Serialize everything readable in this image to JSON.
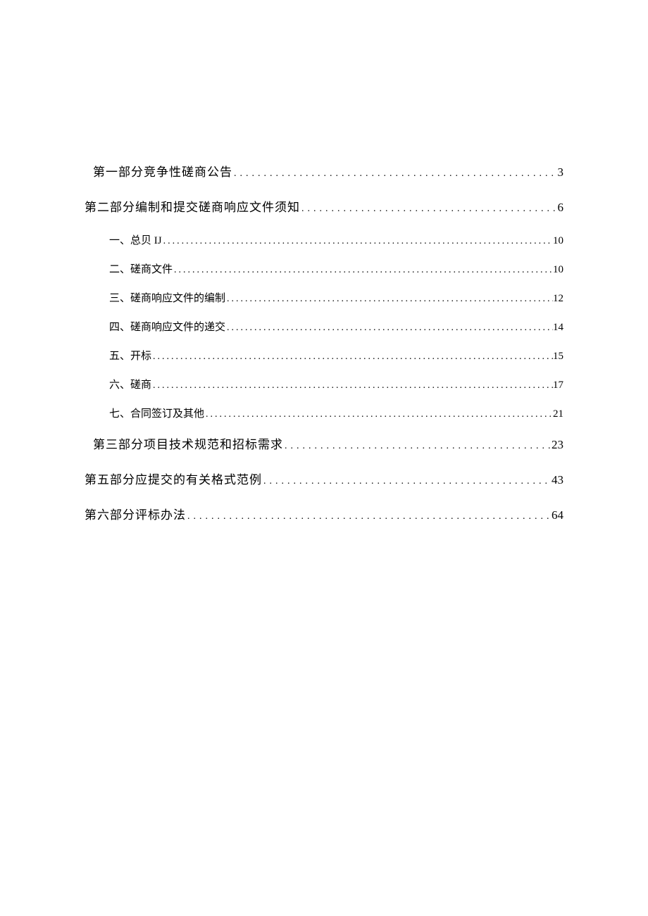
{
  "toc": {
    "background_color": "#ffffff",
    "text_color": "#000000",
    "level1_fontsize": 17,
    "level2_fontsize": 15,
    "entries": [
      {
        "level": 1,
        "label": "第一部分竞争性磋商公告",
        "page": "3",
        "indent": true
      },
      {
        "level": 1,
        "label": "第二部分编制和提交磋商响应文件须知",
        "page": "6",
        "indent": false
      },
      {
        "level": 2,
        "label": "一、总贝 IJ",
        "page": "10"
      },
      {
        "level": 2,
        "label": "二、磋商文件",
        "page": "10"
      },
      {
        "level": 2,
        "label": "三、磋商响应文件的编制",
        "page": "12"
      },
      {
        "level": 2,
        "label": "四、磋商响应文件的递交",
        "page": "14"
      },
      {
        "level": 2,
        "label": "五、开标",
        "page": "15"
      },
      {
        "level": 2,
        "label": "六、磋商",
        "page": "17"
      },
      {
        "level": 2,
        "label": "七、合同签订及其他",
        "page": "21"
      },
      {
        "level": 1,
        "label": "第三部分项目技术规范和招标需求",
        "page": "23",
        "indent": true
      },
      {
        "level": 1,
        "label": "第五部分应提交的有关格式范例",
        "page": "43",
        "indent": false
      },
      {
        "level": 1,
        "label": "第六部分评标办法",
        "page": "64",
        "indent": false
      }
    ]
  },
  "leader_char": "."
}
